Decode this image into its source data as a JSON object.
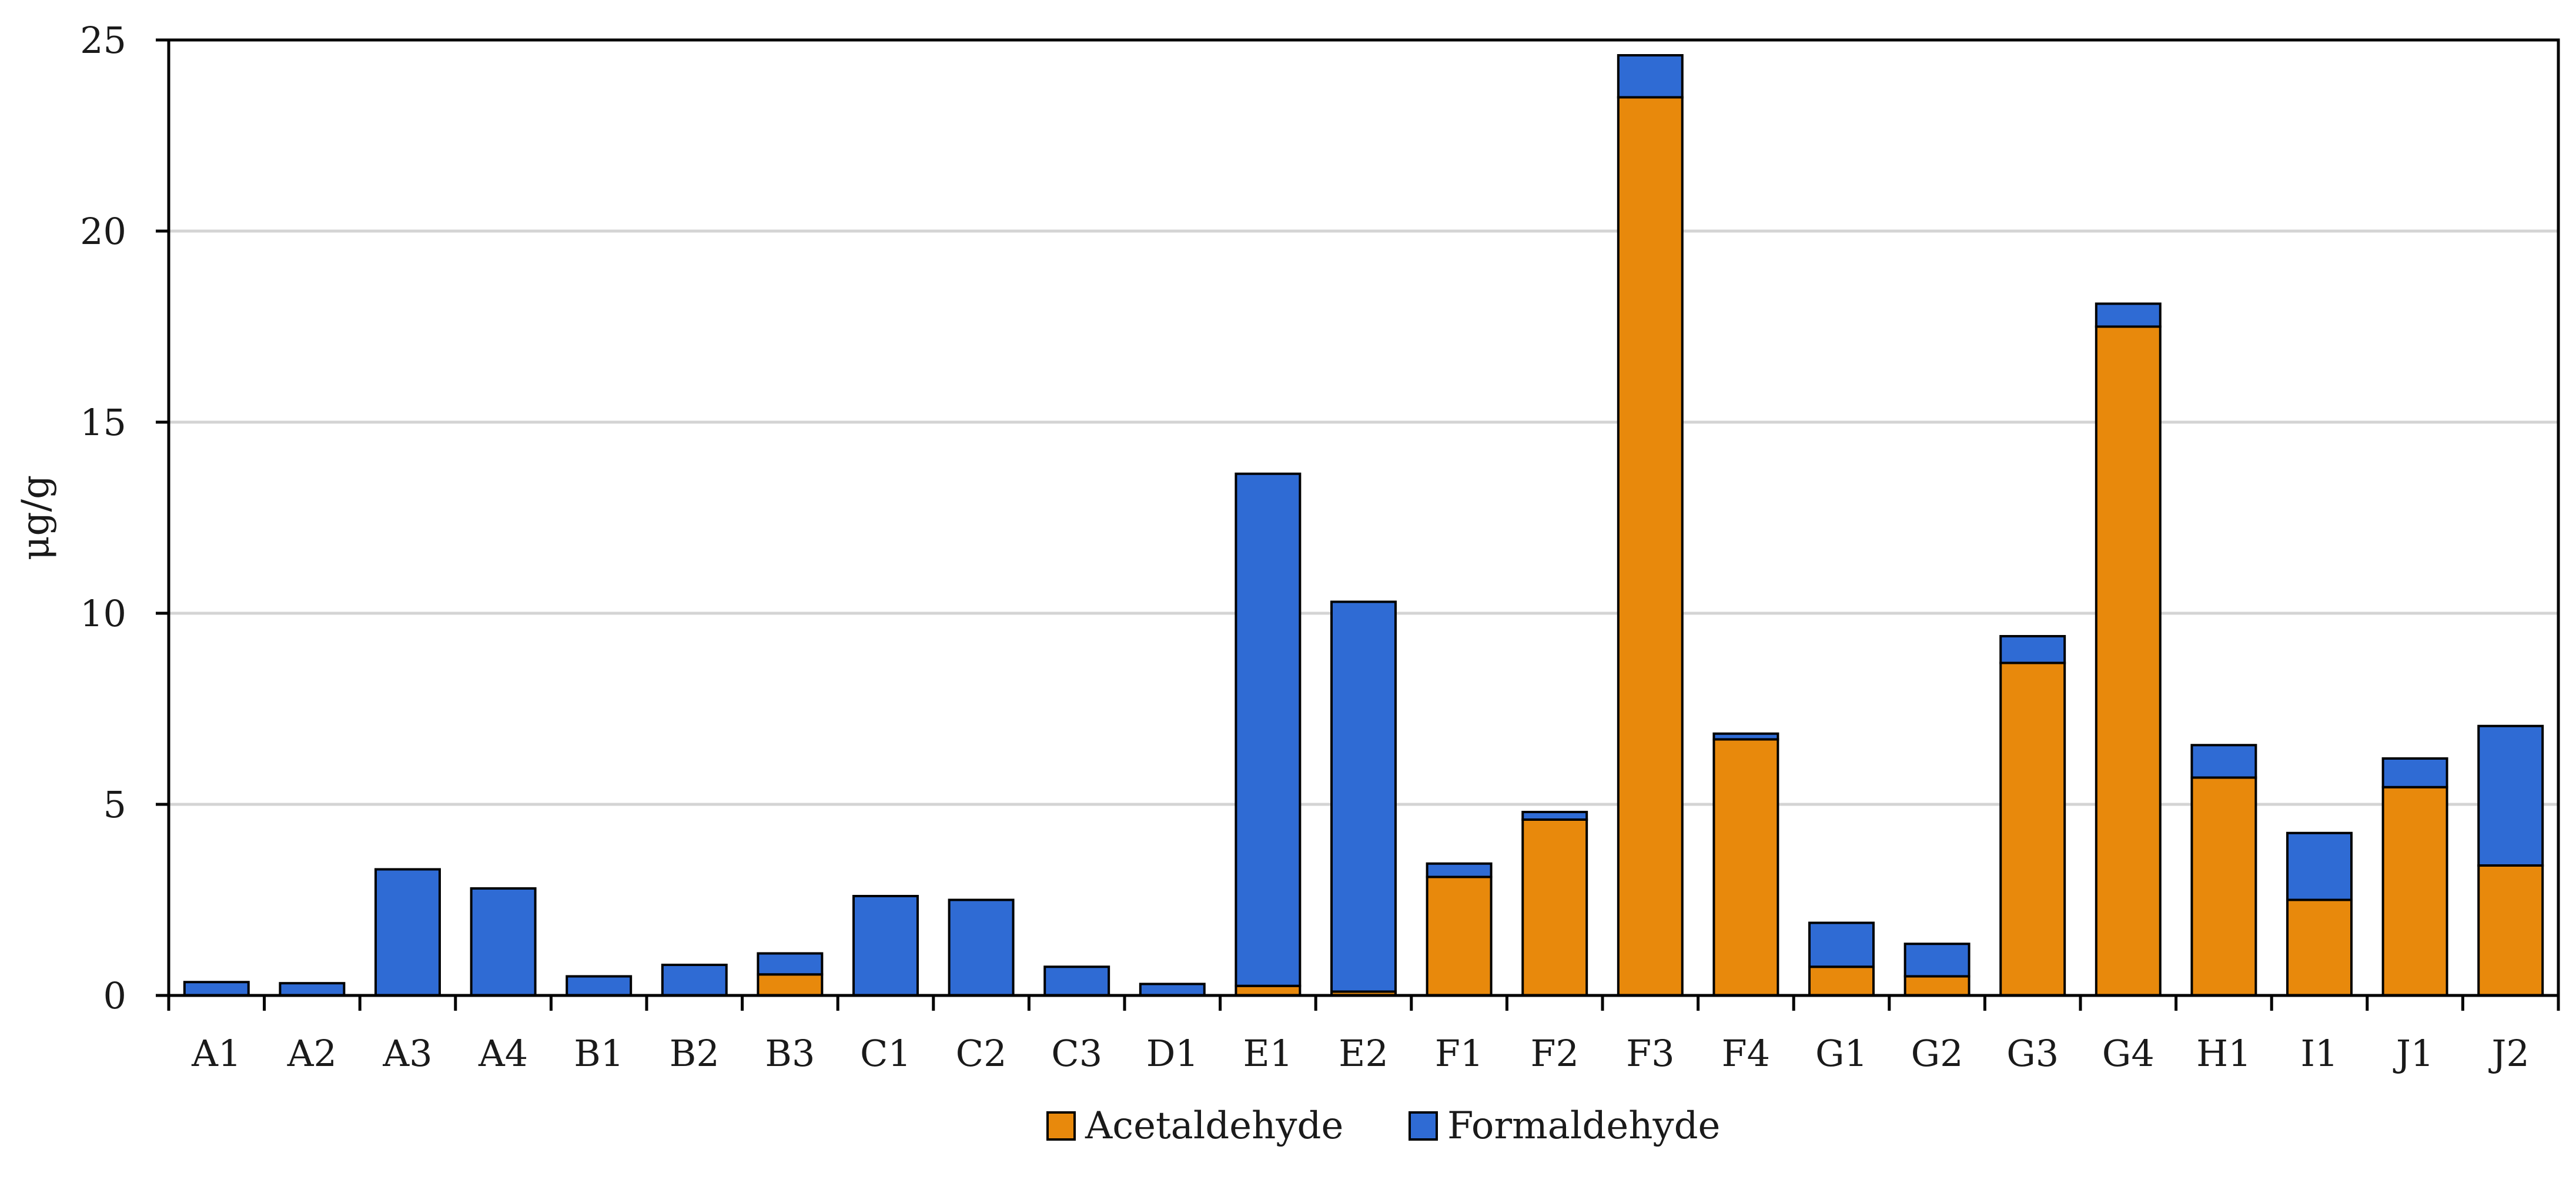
{
  "chart_data": {
    "type": "bar",
    "stacked": true,
    "title": "",
    "xlabel": "",
    "ylabel": "μg/g",
    "ylim": [
      0,
      25
    ],
    "yticks": [
      0,
      5,
      10,
      15,
      20,
      25
    ],
    "grid": true,
    "legend_position": "bottom-center",
    "categories": [
      "A1",
      "A2",
      "A3",
      "A4",
      "B1",
      "B2",
      "B3",
      "C1",
      "C2",
      "C3",
      "D1",
      "E1",
      "E2",
      "F1",
      "F2",
      "F3",
      "F4",
      "G1",
      "G2",
      "G3",
      "G4",
      "H1",
      "I1",
      "J1",
      "J2"
    ],
    "series": [
      {
        "name": "Acetaldehyde",
        "color": "#e8890c",
        "values": [
          0,
          0,
          0,
          0,
          0,
          0,
          0.55,
          0,
          0,
          0,
          0,
          0.25,
          0.1,
          3.1,
          4.6,
          23.5,
          6.7,
          0.75,
          0.5,
          8.7,
          17.5,
          5.7,
          2.5,
          5.45,
          3.4
        ]
      },
      {
        "name": "Formaldehyde",
        "color": "#2f6bd4",
        "values": [
          0.35,
          0.32,
          3.3,
          2.8,
          0.5,
          0.8,
          0.55,
          2.6,
          2.5,
          0.75,
          0.3,
          13.4,
          10.2,
          0.35,
          0.2,
          1.1,
          0.15,
          1.15,
          0.85,
          0.7,
          0.6,
          0.85,
          1.75,
          0.75,
          3.65
        ]
      }
    ]
  }
}
